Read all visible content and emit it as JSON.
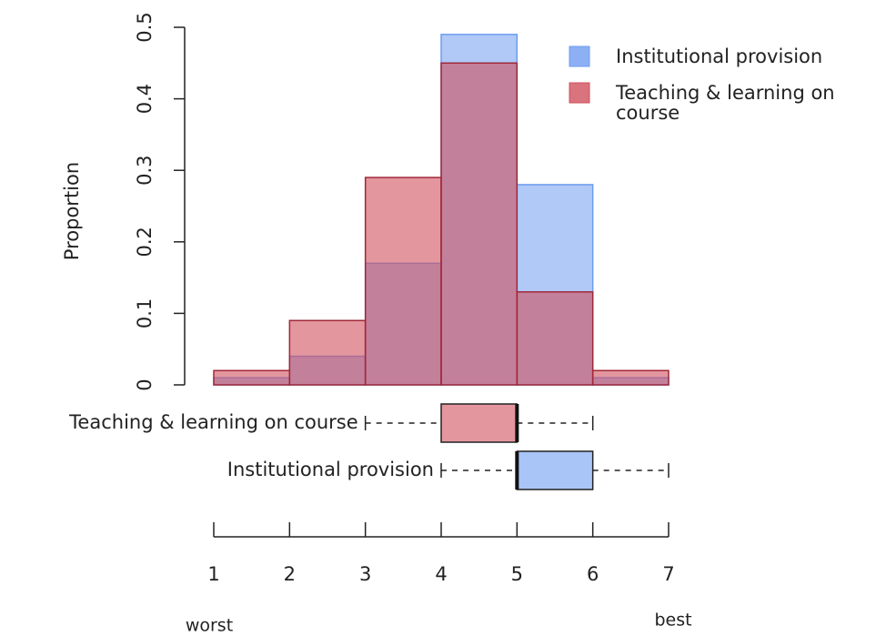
{
  "chart_data": {
    "type": "histogram",
    "y_label": "Proportion",
    "bins": [
      1,
      2,
      3,
      4,
      5,
      6,
      7
    ],
    "series": [
      {
        "name": "Institutional provision",
        "color": "#6f9cf0",
        "values": [
          0.01,
          0.04,
          0.17,
          0.49,
          0.28,
          0.01
        ]
      },
      {
        "name": "Teaching & learning on course",
        "color": "#d0505e",
        "values": [
          0.02,
          0.09,
          0.29,
          0.45,
          0.13,
          0.02
        ]
      }
    ],
    "ylim": [
      0,
      0.5
    ],
    "yticks": [
      0,
      0.1,
      0.2,
      0.3,
      0.4,
      0.5
    ],
    "xlim": [
      1,
      7
    ],
    "xticks": [
      1,
      2,
      3,
      4,
      5,
      6,
      7
    ],
    "boxplots": [
      {
        "name": "Teaching & learning on course",
        "color": "#d0505e",
        "whisker_low": 3,
        "q1": 4,
        "median": 5,
        "q3": 5,
        "whisker_high": 6
      },
      {
        "name": "Institutional provision",
        "color": "#6f9cf0",
        "whisker_low": 4,
        "q1": 5,
        "median": 5,
        "q3": 6,
        "whisker_high": 7
      }
    ],
    "annotations": [
      "worst",
      "best"
    ],
    "legend": "top-right"
  }
}
